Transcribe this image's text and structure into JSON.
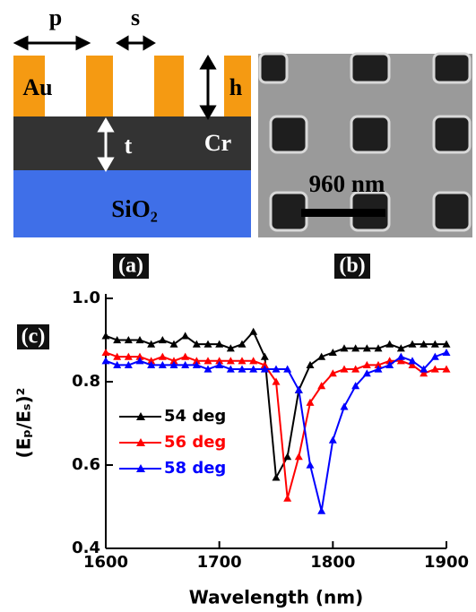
{
  "schematic": {
    "panel_label": "(a)",
    "p": "p",
    "s": "s",
    "h": "h",
    "t": "t",
    "metal": "Au",
    "layer": "Cr",
    "substrate": "SiO₂"
  },
  "micrograph": {
    "panel_label": "(b)",
    "scale_bar": "960 nm"
  },
  "chart_data": {
    "type": "line",
    "panel_label": "(c)",
    "xlabel": "Wavelength (nm)",
    "ylabel": "(Eₚ/Eₛ)²",
    "x": [
      1600,
      1610,
      1620,
      1630,
      1640,
      1650,
      1660,
      1670,
      1680,
      1690,
      1700,
      1710,
      1720,
      1730,
      1740,
      1750,
      1760,
      1770,
      1780,
      1790,
      1800,
      1810,
      1820,
      1830,
      1840,
      1850,
      1860,
      1870,
      1880,
      1890,
      1900
    ],
    "series": [
      {
        "name": "54 deg",
        "color": "#000000",
        "values": [
          0.91,
          0.9,
          0.9,
          0.9,
          0.89,
          0.9,
          0.89,
          0.91,
          0.89,
          0.89,
          0.89,
          0.88,
          0.89,
          0.92,
          0.86,
          0.57,
          0.62,
          0.78,
          0.84,
          0.86,
          0.87,
          0.88,
          0.88,
          0.88,
          0.88,
          0.89,
          0.88,
          0.89,
          0.89,
          0.89,
          0.89
        ]
      },
      {
        "name": "56 deg",
        "color": "#ff0000",
        "values": [
          0.87,
          0.86,
          0.86,
          0.86,
          0.85,
          0.86,
          0.85,
          0.86,
          0.85,
          0.85,
          0.85,
          0.85,
          0.85,
          0.85,
          0.84,
          0.8,
          0.52,
          0.62,
          0.75,
          0.79,
          0.82,
          0.83,
          0.83,
          0.84,
          0.84,
          0.85,
          0.85,
          0.84,
          0.82,
          0.83,
          0.83
        ]
      },
      {
        "name": "58 deg",
        "color": "#0000ff",
        "values": [
          0.85,
          0.84,
          0.84,
          0.85,
          0.84,
          0.84,
          0.84,
          0.84,
          0.84,
          0.83,
          0.84,
          0.83,
          0.83,
          0.83,
          0.83,
          0.83,
          0.83,
          0.78,
          0.6,
          0.49,
          0.66,
          0.74,
          0.79,
          0.82,
          0.83,
          0.84,
          0.86,
          0.85,
          0.83,
          0.86,
          0.87
        ]
      }
    ],
    "xlim": [
      1600,
      1900
    ],
    "xticks": [
      1600,
      1700,
      1800,
      1900
    ],
    "ylim": [
      0.4,
      1.0
    ],
    "yticks": [
      0.4,
      0.6,
      0.8,
      {
        "value": 1,
        "label": "1.0"
      }
    ],
    "legend": "middle-left"
  }
}
